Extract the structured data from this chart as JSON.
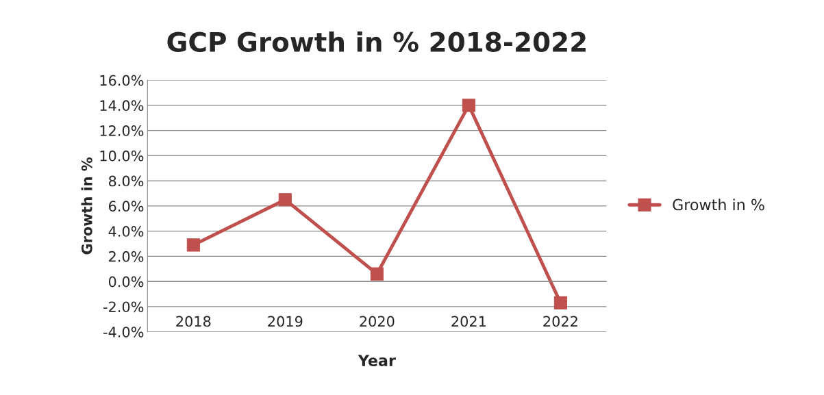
{
  "chart_data": {
    "type": "line",
    "title": "GCP Growth in % 2018-2022",
    "xlabel": "Year",
    "ylabel": "Growth in %",
    "categories": [
      "2018",
      "2019",
      "2020",
      "2021",
      "2022"
    ],
    "series": [
      {
        "name": "Growth in %",
        "color": "#c0504d",
        "values": [
          2.9,
          6.5,
          0.6,
          14.0,
          -1.7
        ]
      }
    ],
    "ylim": [
      -4,
      16
    ],
    "yticks": [
      {
        "value": -4,
        "label": "-4.0%"
      },
      {
        "value": -2,
        "label": "-2.0%"
      },
      {
        "value": 0,
        "label": "0.0%"
      },
      {
        "value": 2,
        "label": "2.0%"
      },
      {
        "value": 4,
        "label": "4.0%"
      },
      {
        "value": 6,
        "label": "6.0%"
      },
      {
        "value": 8,
        "label": "8.0%"
      },
      {
        "value": 10,
        "label": "10.0%"
      },
      {
        "value": 12,
        "label": "12.0%"
      },
      {
        "value": 14,
        "label": "14.0%"
      },
      {
        "value": 16,
        "label": "16.0%"
      }
    ],
    "grid": "y",
    "legend": "right",
    "marker": "square",
    "line_style": "solid"
  }
}
